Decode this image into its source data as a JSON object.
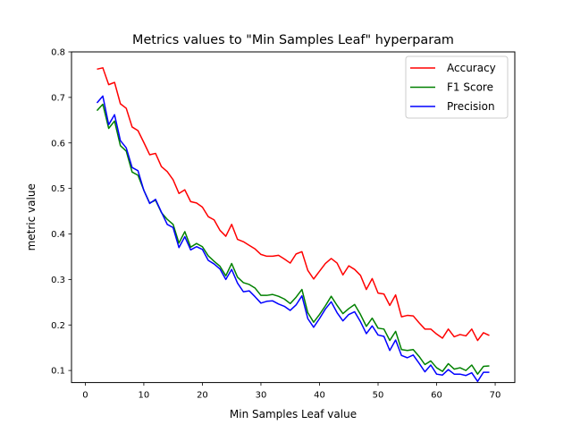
{
  "chart_data": {
    "type": "line",
    "title": "Metrics values to \"Min Samples Leaf\" hyperparam",
    "xlabel": "Min Samples Leaf value",
    "ylabel": "metric value",
    "xlim": [
      -2.35,
      73.35
    ],
    "ylim": [
      0.0735,
      0.8
    ],
    "xticks": [
      0,
      10,
      20,
      30,
      40,
      50,
      60,
      70
    ],
    "xtick_labels": [
      "0",
      "10",
      "20",
      "30",
      "40",
      "50",
      "60",
      "70"
    ],
    "yticks": [
      0.1,
      0.2,
      0.3,
      0.4,
      0.5,
      0.6,
      0.7,
      0.8
    ],
    "ytick_labels": [
      "0.1",
      "0.2",
      "0.3",
      "0.4",
      "0.5",
      "0.6",
      "0.7",
      "0.8"
    ],
    "grid": false,
    "legend_position": "top-right",
    "x": [
      2,
      3,
      4,
      5,
      6,
      7,
      8,
      9,
      10,
      11,
      12,
      13,
      14,
      15,
      16,
      17,
      18,
      19,
      20,
      21,
      22,
      23,
      24,
      25,
      26,
      27,
      28,
      29,
      30,
      31,
      32,
      33,
      34,
      35,
      36,
      37,
      38,
      39,
      40,
      41,
      42,
      43,
      44,
      45,
      46,
      47,
      48,
      49,
      50,
      51,
      52,
      53,
      54,
      55,
      56,
      57,
      58,
      59,
      60,
      61,
      62,
      63,
      64,
      65,
      66,
      67,
      68,
      69
    ],
    "series": [
      {
        "name": "Accuracy",
        "color": "#ff0000",
        "values": [
          0.762,
          0.765,
          0.728,
          0.733,
          0.686,
          0.676,
          0.635,
          0.627,
          0.601,
          0.574,
          0.577,
          0.548,
          0.537,
          0.519,
          0.489,
          0.497,
          0.471,
          0.468,
          0.459,
          0.438,
          0.431,
          0.408,
          0.395,
          0.421,
          0.388,
          0.383,
          0.375,
          0.367,
          0.355,
          0.351,
          0.351,
          0.353,
          0.345,
          0.336,
          0.356,
          0.361,
          0.32,
          0.301,
          0.318,
          0.335,
          0.346,
          0.336,
          0.31,
          0.33,
          0.322,
          0.309,
          0.278,
          0.302,
          0.27,
          0.268,
          0.243,
          0.266,
          0.218,
          0.221,
          0.22,
          0.205,
          0.191,
          0.191,
          0.18,
          0.171,
          0.191,
          0.174,
          0.179,
          0.176,
          0.191,
          0.166,
          0.183,
          0.177
        ]
      },
      {
        "name": "F1 Score",
        "color": "#008000",
        "values": [
          0.671,
          0.685,
          0.632,
          0.648,
          0.594,
          0.582,
          0.536,
          0.529,
          0.496,
          0.468,
          0.474,
          0.447,
          0.432,
          0.421,
          0.38,
          0.405,
          0.371,
          0.379,
          0.372,
          0.352,
          0.34,
          0.329,
          0.308,
          0.335,
          0.305,
          0.293,
          0.289,
          0.281,
          0.265,
          0.265,
          0.267,
          0.263,
          0.257,
          0.247,
          0.261,
          0.278,
          0.227,
          0.206,
          0.223,
          0.242,
          0.263,
          0.243,
          0.225,
          0.236,
          0.245,
          0.223,
          0.197,
          0.215,
          0.193,
          0.191,
          0.166,
          0.186,
          0.146,
          0.144,
          0.146,
          0.131,
          0.113,
          0.121,
          0.106,
          0.098,
          0.115,
          0.103,
          0.106,
          0.1,
          0.112,
          0.092,
          0.109,
          0.11
        ]
      },
      {
        "name": "Precision",
        "color": "#0000ff",
        "values": [
          0.688,
          0.703,
          0.64,
          0.662,
          0.605,
          0.589,
          0.546,
          0.539,
          0.496,
          0.467,
          0.476,
          0.448,
          0.421,
          0.414,
          0.37,
          0.394,
          0.365,
          0.372,
          0.366,
          0.342,
          0.334,
          0.323,
          0.3,
          0.322,
          0.292,
          0.273,
          0.275,
          0.262,
          0.248,
          0.252,
          0.253,
          0.246,
          0.241,
          0.232,
          0.244,
          0.264,
          0.214,
          0.195,
          0.214,
          0.235,
          0.251,
          0.227,
          0.209,
          0.223,
          0.229,
          0.207,
          0.181,
          0.198,
          0.178,
          0.175,
          0.144,
          0.167,
          0.133,
          0.128,
          0.134,
          0.116,
          0.097,
          0.112,
          0.092,
          0.09,
          0.102,
          0.092,
          0.092,
          0.089,
          0.095,
          0.076,
          0.096,
          0.096
        ]
      }
    ]
  }
}
